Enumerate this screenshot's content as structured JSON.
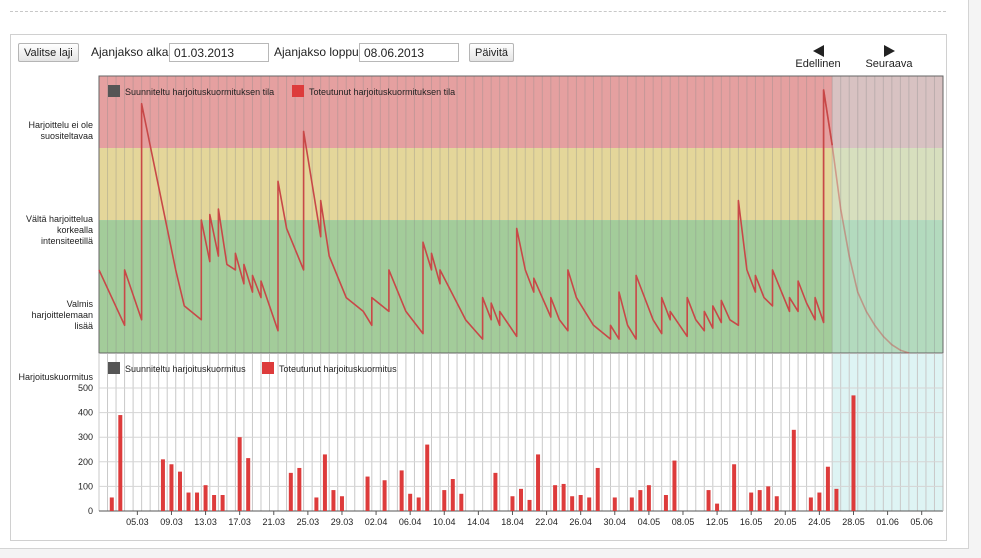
{
  "toolbar": {
    "select_sport_label": "Valitse laji",
    "period_start_label": "Ajanjakso alkaa",
    "period_start_value": "01.03.2013",
    "period_end_label": "Ajanjakso loppuu",
    "period_end_value": "08.06.2013",
    "update_label": "Päivitä",
    "prev_label": "Edellinen",
    "next_label": "Seuraava"
  },
  "colors": {
    "red_zone": "#e5a0a0",
    "yellow_zone": "#e4d69a",
    "green_zone": "#a3cc9a",
    "forecast_zone": "#c8ecec",
    "bar": "#dd3b3b",
    "line": "#c84848",
    "planned": "#555555"
  },
  "chart_data": [
    {
      "type": "line",
      "legend": [
        "Suunniteltu harjoituskuormituksen tila",
        "Toteutunut harjoituskuormituksen tila"
      ],
      "zones": [
        "Harjoittelu ei ole suositeltavaa",
        "Vältä harjoittelua korkealla intensiteetillä",
        "Valmis harjoittelemaan lisää"
      ],
      "zone_bounds": [
        0,
        0.26,
        0.52,
        1
      ],
      "x_start": "2013-03-01",
      "x_end": "2013-06-08",
      "forecast_start": "2013-05-26",
      "series": [
        {
          "name": "Toteutunut harjoituskuormituksen tila",
          "points": [
            [
              "2013-03-01",
              0.3
            ],
            [
              "2013-03-04",
              0.1
            ],
            [
              "2013-03-04",
              0.3
            ],
            [
              "2013-03-06",
              0.12
            ],
            [
              "2013-03-06",
              0.9
            ],
            [
              "2013-03-10",
              0.3
            ],
            [
              "2013-03-11",
              0.17
            ],
            [
              "2013-03-13",
              0.12
            ],
            [
              "2013-03-13",
              0.48
            ],
            [
              "2013-03-14",
              0.33
            ],
            [
              "2013-03-14",
              0.5
            ],
            [
              "2013-03-15",
              0.35
            ],
            [
              "2013-03-15",
              0.52
            ],
            [
              "2013-03-16",
              0.32
            ],
            [
              "2013-03-17",
              0.3
            ],
            [
              "2013-03-17",
              0.36
            ],
            [
              "2013-03-18",
              0.25
            ],
            [
              "2013-03-18",
              0.32
            ],
            [
              "2013-03-19",
              0.22
            ],
            [
              "2013-03-19",
              0.28
            ],
            [
              "2013-03-20",
              0.2
            ],
            [
              "2013-03-20",
              0.26
            ],
            [
              "2013-03-22",
              0.08
            ],
            [
              "2013-03-22",
              0.62
            ],
            [
              "2013-03-23",
              0.45
            ],
            [
              "2013-03-25",
              0.3
            ],
            [
              "2013-03-25",
              0.8
            ],
            [
              "2013-03-27",
              0.42
            ],
            [
              "2013-03-27",
              0.55
            ],
            [
              "2013-03-28",
              0.35
            ],
            [
              "2013-03-30",
              0.2
            ],
            [
              "2013-04-01",
              0.15
            ],
            [
              "2013-04-02",
              0.1
            ],
            [
              "2013-04-02",
              0.2
            ],
            [
              "2013-04-04",
              0.15
            ],
            [
              "2013-04-04",
              0.3
            ],
            [
              "2013-04-06",
              0.15
            ],
            [
              "2013-04-08",
              0.07
            ],
            [
              "2013-04-08",
              0.4
            ],
            [
              "2013-04-09",
              0.3
            ],
            [
              "2013-04-09",
              0.36
            ],
            [
              "2013-04-10",
              0.25
            ],
            [
              "2013-04-10",
              0.3
            ],
            [
              "2013-04-12",
              0.18
            ],
            [
              "2013-04-13",
              0.12
            ],
            [
              "2013-04-15",
              0.05
            ],
            [
              "2013-04-15",
              0.2
            ],
            [
              "2013-04-16",
              0.12
            ],
            [
              "2013-04-16",
              0.18
            ],
            [
              "2013-04-17",
              0.1
            ],
            [
              "2013-04-17",
              0.15
            ],
            [
              "2013-04-19",
              0.06
            ],
            [
              "2013-04-19",
              0.45
            ],
            [
              "2013-04-20",
              0.3
            ],
            [
              "2013-04-21",
              0.22
            ],
            [
              "2013-04-21",
              0.27
            ],
            [
              "2013-04-23",
              0.13
            ],
            [
              "2013-04-23",
              0.2
            ],
            [
              "2013-04-24",
              0.12
            ],
            [
              "2013-04-25",
              0.08
            ],
            [
              "2013-04-25",
              0.3
            ],
            [
              "2013-04-26",
              0.2
            ],
            [
              "2013-04-27",
              0.15
            ],
            [
              "2013-04-28",
              0.1
            ],
            [
              "2013-04-30",
              0.05
            ],
            [
              "2013-04-30",
              0.1
            ],
            [
              "2013-05-01",
              0.05
            ],
            [
              "2013-05-01",
              0.22
            ],
            [
              "2013-05-02",
              0.1
            ],
            [
              "2013-05-03",
              0.05
            ],
            [
              "2013-05-03",
              0.28
            ],
            [
              "2013-05-05",
              0.12
            ],
            [
              "2013-05-06",
              0.07
            ],
            [
              "2013-05-06",
              0.2
            ],
            [
              "2013-05-07",
              0.12
            ],
            [
              "2013-05-07",
              0.15
            ],
            [
              "2013-05-09",
              0.06
            ],
            [
              "2013-05-09",
              0.2
            ],
            [
              "2013-05-10",
              0.12
            ],
            [
              "2013-05-11",
              0.08
            ],
            [
              "2013-05-11",
              0.15
            ],
            [
              "2013-05-12",
              0.09
            ],
            [
              "2013-05-12",
              0.17
            ],
            [
              "2013-05-13",
              0.11
            ],
            [
              "2013-05-13",
              0.19
            ],
            [
              "2013-05-14",
              0.12
            ],
            [
              "2013-05-15",
              0.1
            ],
            [
              "2013-05-15",
              0.55
            ],
            [
              "2013-05-16",
              0.3
            ],
            [
              "2013-05-17",
              0.22
            ],
            [
              "2013-05-17",
              0.28
            ],
            [
              "2013-05-18",
              0.2
            ],
            [
              "2013-05-19",
              0.17
            ],
            [
              "2013-05-19",
              0.3
            ],
            [
              "2013-05-21",
              0.15
            ],
            [
              "2013-05-21",
              0.2
            ],
            [
              "2013-05-22",
              0.15
            ],
            [
              "2013-05-22",
              0.26
            ],
            [
              "2013-05-23",
              0.18
            ],
            [
              "2013-05-24",
              0.12
            ],
            [
              "2013-05-24",
              0.2
            ],
            [
              "2013-05-25",
              0.11
            ],
            [
              "2013-05-25",
              0.95
            ],
            [
              "2013-05-26",
              0.75
            ],
            [
              "2013-05-27",
              0.52
            ],
            [
              "2013-05-28",
              0.35
            ],
            [
              "2013-05-29",
              0.22
            ],
            [
              "2013-05-30",
              0.15
            ],
            [
              "2013-05-31",
              0.1
            ],
            [
              "2013-06-01",
              0.06
            ],
            [
              "2013-06-02",
              0.03
            ],
            [
              "2013-06-03",
              0.01
            ],
            [
              "2013-06-04",
              0.0
            ]
          ]
        }
      ]
    },
    {
      "type": "bar",
      "ylabel": "Harjoituskuormitus",
      "ylim": [
        0,
        500
      ],
      "yticks": [
        0,
        100,
        200,
        300,
        400,
        500
      ],
      "ytick_labels": [
        "0",
        "100",
        "200",
        "300",
        "400",
        "500"
      ],
      "legend": [
        "Suunniteltu harjoituskuormitus",
        "Toteutunut harjoituskuormitus"
      ],
      "xtick_labels": [
        "05.03",
        "09.03",
        "13.03",
        "17.03",
        "21.03",
        "25.03",
        "29.03",
        "02.04",
        "06.04",
        "10.04",
        "14.04",
        "18.04",
        "22.04",
        "26.04",
        "30.04",
        "04.05",
        "08.05",
        "12.05",
        "16.05",
        "20.05",
        "24.05",
        "28.05",
        "01.06",
        "05.06"
      ],
      "xtick_dates": [
        "2013-03-05",
        "2013-03-09",
        "2013-03-13",
        "2013-03-17",
        "2013-03-21",
        "2013-03-25",
        "2013-03-29",
        "2013-04-02",
        "2013-04-06",
        "2013-04-10",
        "2013-04-14",
        "2013-04-18",
        "2013-04-22",
        "2013-04-26",
        "2013-04-30",
        "2013-05-04",
        "2013-05-08",
        "2013-05-12",
        "2013-05-16",
        "2013-05-20",
        "2013-05-24",
        "2013-05-28",
        "2013-06-01",
        "2013-06-05"
      ],
      "bars": [
        [
          "2013-03-02",
          55
        ],
        [
          "2013-03-03",
          390
        ],
        [
          "2013-03-08",
          210
        ],
        [
          "2013-03-09",
          190
        ],
        [
          "2013-03-10",
          160
        ],
        [
          "2013-03-11",
          75
        ],
        [
          "2013-03-12",
          75
        ],
        [
          "2013-03-13",
          105
        ],
        [
          "2013-03-14",
          65
        ],
        [
          "2013-03-15",
          65
        ],
        [
          "2013-03-17",
          300
        ],
        [
          "2013-03-18",
          215
        ],
        [
          "2013-03-23",
          155
        ],
        [
          "2013-03-24",
          175
        ],
        [
          "2013-03-26",
          55
        ],
        [
          "2013-03-27",
          230
        ],
        [
          "2013-03-28",
          85
        ],
        [
          "2013-03-29",
          60
        ],
        [
          "2013-04-01",
          140
        ],
        [
          "2013-04-03",
          125
        ],
        [
          "2013-04-05",
          165
        ],
        [
          "2013-04-06",
          70
        ],
        [
          "2013-04-07",
          55
        ],
        [
          "2013-04-08",
          270
        ],
        [
          "2013-04-10",
          85
        ],
        [
          "2013-04-11",
          130
        ],
        [
          "2013-04-12",
          70
        ],
        [
          "2013-04-16",
          155
        ],
        [
          "2013-04-18",
          60
        ],
        [
          "2013-04-19",
          90
        ],
        [
          "2013-04-20",
          45
        ],
        [
          "2013-04-21",
          230
        ],
        [
          "2013-04-23",
          105
        ],
        [
          "2013-04-24",
          110
        ],
        [
          "2013-04-25",
          60
        ],
        [
          "2013-04-26",
          65
        ],
        [
          "2013-04-27",
          55
        ],
        [
          "2013-04-28",
          175
        ],
        [
          "2013-04-30",
          55
        ],
        [
          "2013-05-02",
          55
        ],
        [
          "2013-05-03",
          85
        ],
        [
          "2013-05-04",
          105
        ],
        [
          "2013-05-06",
          65
        ],
        [
          "2013-05-07",
          205
        ],
        [
          "2013-05-11",
          85
        ],
        [
          "2013-05-12",
          30
        ],
        [
          "2013-05-14",
          190
        ],
        [
          "2013-05-16",
          75
        ],
        [
          "2013-05-17",
          85
        ],
        [
          "2013-05-18",
          100
        ],
        [
          "2013-05-19",
          60
        ],
        [
          "2013-05-21",
          330
        ],
        [
          "2013-05-23",
          55
        ],
        [
          "2013-05-24",
          75
        ],
        [
          "2013-05-25",
          180
        ],
        [
          "2013-05-26",
          90
        ],
        [
          "2013-05-28",
          470
        ]
      ]
    }
  ]
}
